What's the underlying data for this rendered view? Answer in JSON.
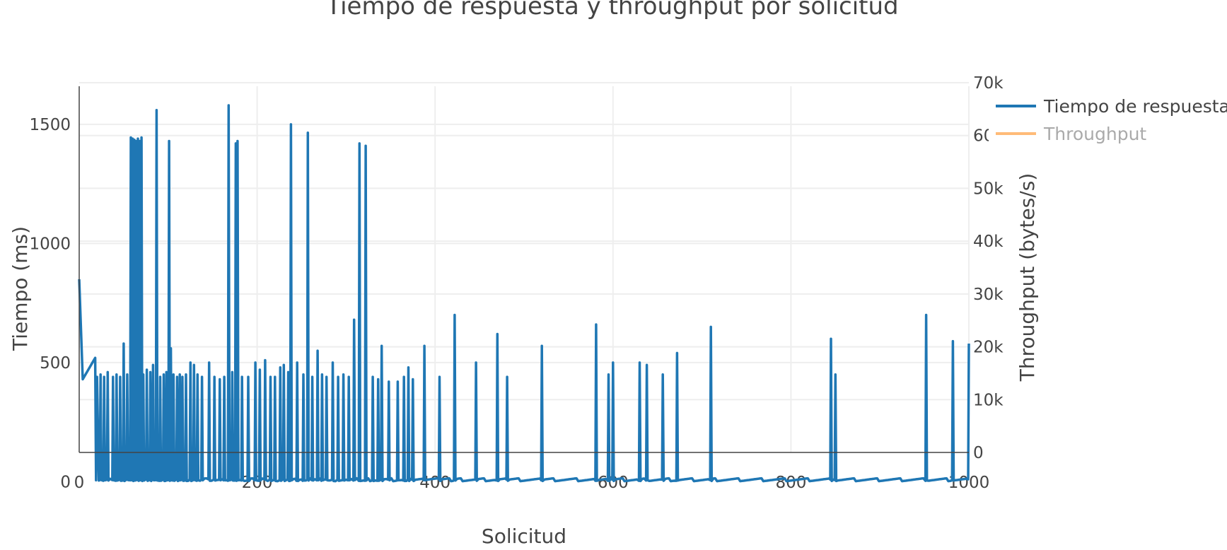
{
  "chart_data": {
    "type": "line",
    "title": "Tiempo de respuesta y throughput por solicitud",
    "xlabel": "Solicitud",
    "ylabel": "Tiempo (ms)",
    "y2label": "Throughput (bytes/s)",
    "xlim": [
      0,
      1000
    ],
    "ylim": [
      -70,
      1660
    ],
    "y2lim": [
      0,
      70000
    ],
    "x_ticks": [
      "0",
      "200",
      "400",
      "600",
      "800",
      "1000"
    ],
    "y_ticks": [
      "0",
      "500",
      "1000",
      "1500"
    ],
    "y2_ticks": [
      "0",
      "10k",
      "20k",
      "30k",
      "40k",
      "50k",
      "60k",
      "70k"
    ],
    "grid": true,
    "legend_position": "top-right",
    "colors": {
      "response": "#1f77b4",
      "throughput": "#ffbb78"
    },
    "series": [
      {
        "name": "Tiempo de respuesta",
        "axis": "y",
        "visible": true,
        "baseline": [
          [
            0,
            850
          ],
          [
            4,
            430
          ],
          [
            20,
            440
          ],
          [
            22,
            5
          ],
          [
            1000,
            5
          ]
        ],
        "spikes": [
          [
            18,
            520
          ],
          [
            24,
            450
          ],
          [
            28,
            440
          ],
          [
            32,
            460
          ],
          [
            38,
            440
          ],
          [
            42,
            450
          ],
          [
            46,
            440
          ],
          [
            50,
            580
          ],
          [
            54,
            450
          ],
          [
            58,
            1445
          ],
          [
            60,
            1440
          ],
          [
            62,
            1435
          ],
          [
            64,
            1430
          ],
          [
            66,
            1440
          ],
          [
            68,
            1430
          ],
          [
            70,
            1445
          ],
          [
            72,
            450
          ],
          [
            76,
            470
          ],
          [
            80,
            460
          ],
          [
            83,
            490
          ],
          [
            87,
            1560
          ],
          [
            91,
            440
          ],
          [
            95,
            450
          ],
          [
            98,
            460
          ],
          [
            101,
            1430
          ],
          [
            103,
            560
          ],
          [
            106,
            450
          ],
          [
            110,
            440
          ],
          [
            113,
            450
          ],
          [
            116,
            440
          ],
          [
            120,
            450
          ],
          [
            125,
            500
          ],
          [
            129,
            490
          ],
          [
            133,
            450
          ],
          [
            138,
            440
          ],
          [
            146,
            500
          ],
          [
            152,
            440
          ],
          [
            158,
            430
          ],
          [
            163,
            440
          ],
          [
            168,
            1580
          ],
          [
            172,
            460
          ],
          [
            176,
            1420
          ],
          [
            178,
            1430
          ],
          [
            183,
            440
          ],
          [
            190,
            440
          ],
          [
            198,
            500
          ],
          [
            203,
            470
          ],
          [
            209,
            510
          ],
          [
            215,
            440
          ],
          [
            220,
            440
          ],
          [
            226,
            480
          ],
          [
            230,
            490
          ],
          [
            235,
            460
          ],
          [
            238,
            1500
          ],
          [
            245,
            500
          ],
          [
            252,
            450
          ],
          [
            257,
            1465
          ],
          [
            262,
            440
          ],
          [
            268,
            550
          ],
          [
            273,
            450
          ],
          [
            278,
            440
          ],
          [
            285,
            500
          ],
          [
            291,
            440
          ],
          [
            297,
            450
          ],
          [
            303,
            440
          ],
          [
            309,
            680
          ],
          [
            315,
            1420
          ],
          [
            322,
            1410
          ],
          [
            330,
            440
          ],
          [
            336,
            430
          ],
          [
            340,
            570
          ],
          [
            348,
            420
          ],
          [
            358,
            420
          ],
          [
            365,
            440
          ],
          [
            370,
            480
          ],
          [
            375,
            430
          ],
          [
            388,
            570
          ],
          [
            405,
            440
          ],
          [
            422,
            700
          ],
          [
            446,
            500
          ],
          [
            470,
            620
          ],
          [
            481,
            440
          ],
          [
            520,
            570
          ],
          [
            581,
            660
          ],
          [
            595,
            450
          ],
          [
            600,
            500
          ],
          [
            630,
            500
          ],
          [
            638,
            490
          ],
          [
            656,
            450
          ],
          [
            672,
            540
          ],
          [
            710,
            650
          ],
          [
            845,
            600
          ],
          [
            850,
            450
          ],
          [
            952,
            700
          ],
          [
            982,
            590
          ],
          [
            1000,
            580
          ]
        ]
      },
      {
        "name": "Throughput",
        "axis": "y2",
        "visible": false
      }
    ]
  }
}
